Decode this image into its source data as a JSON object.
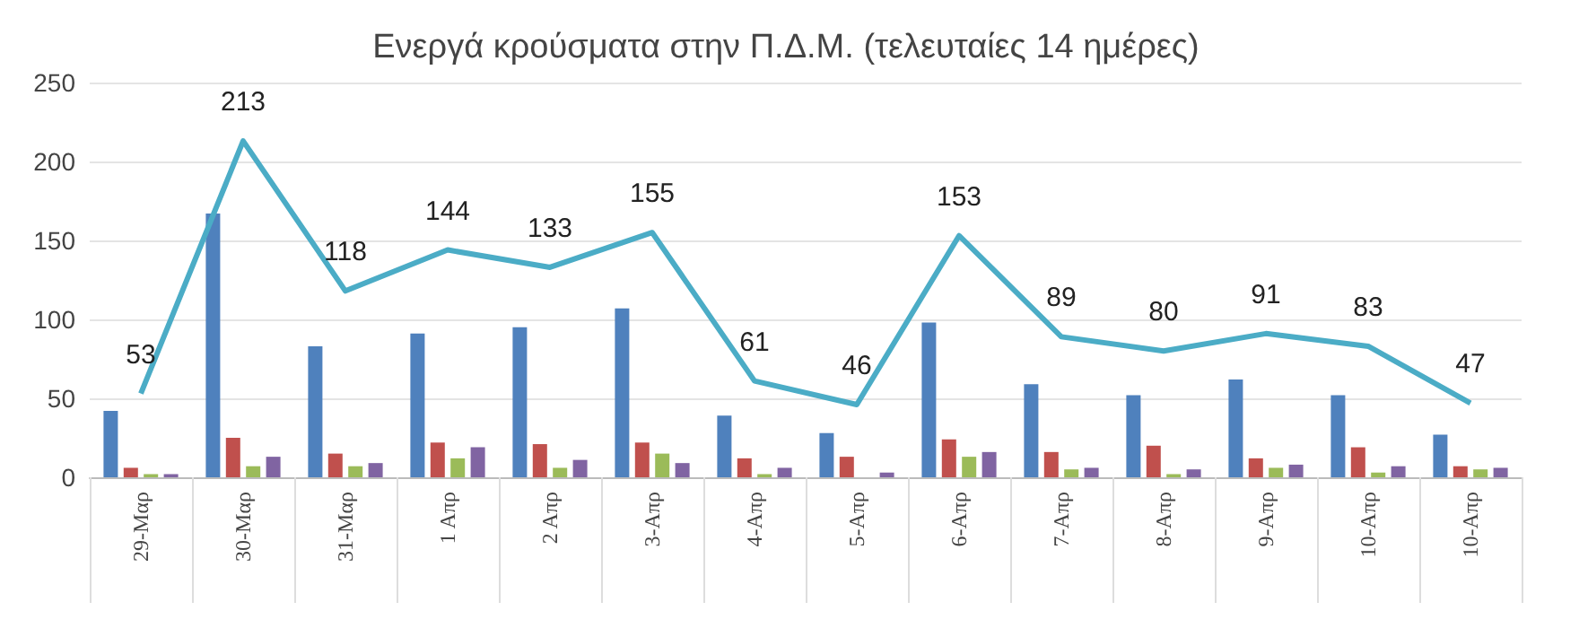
{
  "chart_data": {
    "type": "bar",
    "title": "Ενεργά κρούσματα στην Π.Δ.Μ. (τελευταίες 14 ημέρες)",
    "categories": [
      "29-Μαρ",
      "30-Μαρ",
      "31-Μαρ",
      "1 Απρ",
      "2 Απρ",
      "3-Απρ",
      "4-Απρ",
      "5-Απρ",
      "6-Απρ",
      "7-Απρ",
      "8-Απρ",
      "9-Απρ",
      "10-Απρ",
      "10-Απρ"
    ],
    "series": [
      {
        "color": "#4f81bd",
        "values": [
          42,
          167,
          83,
          91,
          95,
          107,
          39,
          28,
          98,
          59,
          52,
          62,
          52,
          27
        ]
      },
      {
        "color": "#c0504d",
        "values": [
          6,
          25,
          15,
          22,
          21,
          22,
          12,
          13,
          24,
          16,
          20,
          12,
          19,
          7
        ]
      },
      {
        "color": "#9bbb59",
        "values": [
          2,
          7,
          7,
          12,
          6,
          15,
          2,
          0,
          13,
          5,
          2,
          6,
          3,
          5
        ]
      },
      {
        "color": "#8064a2",
        "values": [
          2,
          13,
          9,
          19,
          11,
          9,
          6,
          3,
          16,
          6,
          5,
          8,
          7,
          6
        ]
      },
      {
        "type": "line",
        "color": "#4bacc6",
        "data_labels": true,
        "marker": "none",
        "values": [
          53,
          213,
          118,
          144,
          133,
          155,
          61,
          46,
          153,
          89,
          80,
          91,
          83,
          47
        ]
      }
    ],
    "ylim": [
      0,
      250
    ],
    "yticks": [
      0,
      50,
      100,
      150,
      200,
      250
    ],
    "grid": "y"
  }
}
